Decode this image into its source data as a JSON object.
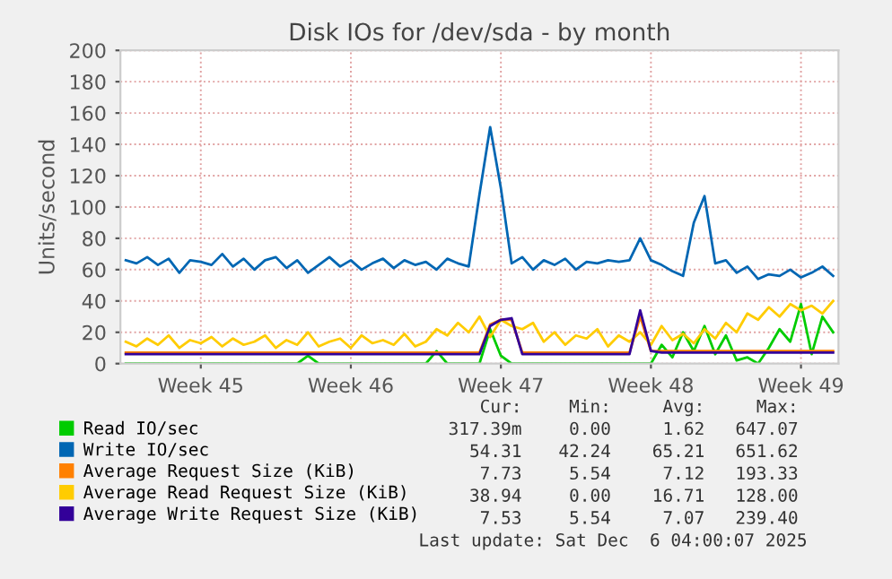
{
  "chart_data": {
    "type": "line",
    "title": "Disk IOs for /dev/sda - by month",
    "ylabel": "Units/second",
    "categories": [
      null,
      null,
      null,
      null,
      null,
      null,
      null,
      "Week 45",
      null,
      null,
      null,
      null,
      null,
      null,
      null,
      null,
      null,
      null,
      null,
      null,
      null,
      "Week 46",
      null,
      null,
      null,
      null,
      null,
      null,
      null,
      null,
      null,
      null,
      null,
      null,
      null,
      "Week 47",
      null,
      null,
      null,
      null,
      null,
      null,
      null,
      null,
      null,
      null,
      null,
      null,
      null,
      "Week 48",
      null,
      null,
      null,
      null,
      null,
      null,
      null,
      null,
      null,
      null,
      null,
      null,
      null,
      "Week 49",
      null,
      null,
      null
    ],
    "series": [
      {
        "name": "Read IO/sec",
        "color": "#00cc00",
        "values": [
          0,
          0,
          0,
          0,
          0,
          0,
          0,
          0,
          0,
          0,
          0,
          0,
          0,
          0,
          0,
          0,
          0,
          5,
          0,
          0,
          0,
          0,
          0,
          0,
          0,
          0,
          0,
          0,
          0,
          8,
          0,
          0,
          0,
          0,
          22,
          5,
          0,
          0,
          0,
          0,
          0,
          0,
          0,
          0,
          0,
          0,
          0,
          0,
          0,
          0,
          12,
          4,
          20,
          8,
          24,
          6,
          18,
          2,
          4,
          0,
          10,
          22,
          14,
          38,
          6,
          30,
          20
        ]
      },
      {
        "name": "Write IO/sec",
        "color": "#0066b3",
        "values": [
          66,
          64,
          68,
          63,
          67,
          58,
          66,
          65,
          63,
          70,
          62,
          67,
          60,
          66,
          68,
          61,
          66,
          58,
          63,
          68,
          62,
          66,
          60,
          64,
          67,
          61,
          66,
          63,
          65,
          60,
          67,
          64,
          62,
          108,
          151,
          112,
          64,
          68,
          60,
          66,
          63,
          67,
          60,
          65,
          64,
          66,
          65,
          66,
          80,
          66,
          63,
          59,
          56,
          90,
          107,
          64,
          66,
          58,
          62,
          54,
          57,
          56,
          60,
          55,
          58,
          62,
          56
        ]
      },
      {
        "name": "Average Request Size (KiB)",
        "color": "#ff8000",
        "values": [
          7,
          7,
          7,
          7,
          7,
          7,
          7,
          7,
          7,
          7,
          7,
          7,
          7,
          7,
          7,
          7,
          7,
          7,
          7,
          7,
          7,
          7,
          7,
          7,
          7,
          7,
          7,
          7,
          7,
          7,
          7,
          7,
          7,
          7,
          25,
          28,
          28,
          7,
          7,
          7,
          7,
          7,
          7,
          7,
          7,
          7,
          7,
          7,
          30,
          8,
          8,
          8,
          8,
          8,
          8,
          8,
          8,
          8,
          8,
          8,
          8,
          8,
          8,
          8,
          8,
          8,
          8
        ]
      },
      {
        "name": "Average Read Request Size (KiB)",
        "color": "#ffcc00",
        "values": [
          14,
          11,
          16,
          12,
          18,
          10,
          15,
          13,
          17,
          11,
          16,
          12,
          14,
          18,
          10,
          15,
          12,
          20,
          11,
          14,
          16,
          10,
          18,
          13,
          15,
          12,
          19,
          11,
          14,
          22,
          18,
          26,
          20,
          30,
          17,
          28,
          24,
          22,
          26,
          14,
          20,
          12,
          18,
          16,
          22,
          11,
          18,
          14,
          20,
          12,
          24,
          15,
          19,
          13,
          22,
          16,
          26,
          20,
          32,
          28,
          36,
          30,
          38,
          34,
          37,
          32,
          40
        ]
      },
      {
        "name": "Average Write Request Size (KiB)",
        "color": "#330099",
        "values": [
          6,
          6,
          6,
          6,
          6,
          6,
          6,
          6,
          6,
          6,
          6,
          6,
          6,
          6,
          6,
          6,
          6,
          6,
          6,
          6,
          6,
          6,
          6,
          6,
          6,
          6,
          6,
          6,
          6,
          6,
          6,
          6,
          6,
          6,
          24,
          28,
          29,
          6,
          6,
          6,
          6,
          6,
          6,
          6,
          6,
          6,
          6,
          6,
          34,
          8,
          7,
          7,
          7,
          7,
          7,
          7,
          7,
          7,
          7,
          7,
          7,
          7,
          7,
          7,
          7,
          7,
          7
        ]
      }
    ],
    "ylim": [
      0,
      200
    ],
    "yticks": [
      0,
      20,
      40,
      60,
      80,
      100,
      120,
      140,
      160,
      180,
      200
    ],
    "grid": true,
    "legend": "bottom",
    "annotations": [
      "Cur:",
      "Min:",
      "Avg:",
      "Max:",
      "317.39m",
      "0.00",
      "1.62",
      "647.07",
      "54.31",
      "42.24",
      "65.21",
      "651.62",
      "7.73",
      "5.54",
      "7.12",
      "193.33",
      "38.94",
      "0.00",
      "16.71",
      "128.00",
      "7.53",
      "5.54",
      "7.07",
      "239.40",
      "Last update: Sat Dec  6 04:00:07 2025"
    ]
  }
}
